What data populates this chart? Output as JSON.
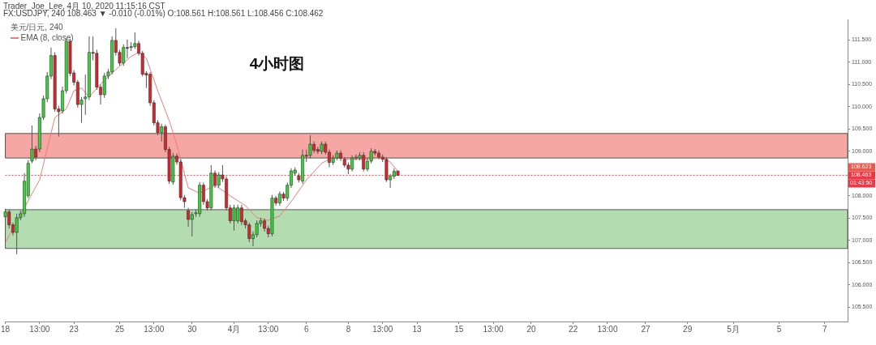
{
  "chart_data": {
    "type": "candlestick",
    "title": "4小时图",
    "subtitle": "FX:USDJPY, 240 108.463 ▼ -0.010 (-0.01%) O:108.561 H:108.561 L:108.456 C:108.462",
    "categories": [
      "18",
      null,
      null,
      null,
      null,
      null,
      null,
      null,
      null,
      "13:00",
      null,
      null,
      null,
      null,
      null,
      null,
      null,
      null,
      "23",
      null,
      null,
      null,
      null,
      null,
      null,
      null,
      null,
      null,
      null,
      null,
      "25",
      null,
      null,
      null,
      null,
      null,
      null,
      null,
      null,
      "13:00",
      null,
      null,
      null,
      null,
      null,
      null,
      null,
      null,
      null,
      "30",
      null,
      null,
      null,
      null,
      null,
      null,
      null,
      null,
      null,
      null,
      "4月",
      null,
      null,
      null,
      null,
      null,
      null,
      null,
      null,
      "13:00",
      null,
      null,
      null,
      null,
      null,
      null,
      null,
      null,
      null,
      "6",
      null,
      null,
      null,
      null,
      null,
      null,
      null,
      null,
      null,
      null,
      "8",
      null,
      null,
      null,
      null,
      null,
      null,
      null,
      null,
      "13:00",
      null,
      null,
      null,
      null,
      null,
      null,
      null,
      null,
      "13",
      null,
      null,
      null,
      null,
      null,
      null,
      null,
      null,
      null,
      null,
      "15",
      null,
      null,
      null,
      null,
      null,
      null,
      null,
      null,
      "13:00",
      null,
      null,
      null,
      null,
      null,
      null,
      null,
      null,
      null,
      "20",
      null,
      null,
      null,
      null,
      null,
      null,
      null,
      null,
      null,
      null,
      "22",
      null,
      null,
      null,
      null,
      null,
      null,
      null,
      null,
      "13:00",
      null,
      null,
      null,
      null,
      null,
      null,
      null,
      null,
      null,
      "27",
      null,
      null,
      null,
      null,
      null,
      null,
      null,
      null,
      null,
      null,
      "29",
      null,
      null,
      null,
      null,
      null,
      null,
      null,
      null,
      null,
      null,
      null,
      "5月",
      null,
      null,
      null,
      null,
      null,
      null,
      null,
      null,
      null,
      null,
      null,
      "5",
      null,
      null,
      null,
      null,
      null,
      null,
      null,
      null,
      null,
      null,
      null,
      "7",
      null,
      null,
      null,
      null,
      null,
      null
    ],
    "ohlc": [
      [
        107.53,
        107.71,
        107.45,
        107.64
      ],
      [
        107.64,
        107.69,
        107.27,
        107.35
      ],
      [
        107.35,
        107.4,
        107.11,
        107.18
      ],
      [
        107.18,
        107.6,
        106.69,
        107.51
      ],
      [
        107.51,
        107.67,
        107.45,
        107.6
      ],
      [
        107.6,
        108.51,
        107.53,
        108.33
      ],
      [
        108.0,
        108.8,
        107.95,
        108.73
      ],
      [
        108.78,
        109.58,
        108.73,
        109.05
      ],
      [
        109.05,
        109.12,
        108.8,
        108.87
      ],
      [
        109.05,
        109.85,
        108.98,
        109.76
      ],
      [
        109.76,
        110.25,
        109.7,
        110.18
      ],
      [
        110.18,
        110.78,
        110.1,
        110.69
      ],
      [
        110.69,
        111.33,
        110.62,
        111.15
      ],
      [
        111.15,
        111.22,
        109.89,
        109.95
      ],
      [
        109.95,
        110.02,
        109.33,
        109.89
      ],
      [
        109.91,
        110.45,
        109.85,
        110.36
      ],
      [
        110.36,
        111.53,
        110.3,
        111.47
      ],
      [
        111.47,
        111.52,
        110.69,
        110.75
      ],
      [
        110.76,
        110.82,
        110.48,
        110.55
      ],
      [
        110.55,
        110.6,
        109.98,
        110.05
      ],
      [
        110.05,
        110.22,
        109.64,
        110.15
      ],
      [
        110.18,
        110.72,
        109.82,
        110.22
      ],
      [
        110.22,
        111.58,
        110.15,
        111.22
      ],
      [
        111.22,
        111.58,
        111.04,
        111.2
      ],
      [
        111.2,
        111.28,
        110.38,
        110.44
      ],
      [
        110.44,
        110.5,
        110.05,
        110.27
      ],
      [
        110.27,
        110.76,
        110.2,
        110.69
      ],
      [
        110.69,
        110.85,
        110.62,
        110.78
      ],
      [
        110.78,
        111.58,
        110.72,
        111.49
      ],
      [
        111.49,
        111.76,
        111.15,
        111.22
      ],
      [
        111.22,
        111.28,
        110.92,
        110.98
      ],
      [
        110.98,
        111.4,
        110.92,
        111.33
      ],
      [
        111.33,
        111.51,
        111.09,
        111.31
      ],
      [
        111.33,
        111.45,
        111.25,
        111.35
      ],
      [
        111.35,
        111.67,
        111.3,
        111.42
      ],
      [
        111.42,
        111.48,
        111.15,
        111.2
      ],
      [
        111.2,
        111.25,
        110.68,
        110.73
      ],
      [
        110.75,
        110.8,
        110.42,
        110.71
      ],
      [
        110.73,
        110.78,
        110.02,
        110.09
      ],
      [
        110.09,
        110.15,
        109.58,
        109.64
      ],
      [
        109.64,
        109.7,
        109.36,
        109.42
      ],
      [
        109.42,
        109.62,
        109.22,
        109.55
      ],
      [
        109.55,
        109.6,
        108.98,
        109.04
      ],
      [
        109.04,
        109.1,
        108.27,
        108.33
      ],
      [
        108.31,
        108.96,
        108.25,
        108.89
      ],
      [
        108.89,
        108.95,
        108.7,
        108.76
      ],
      [
        108.76,
        108.82,
        107.9,
        107.96
      ],
      [
        107.96,
        108.02,
        107.73,
        107.87
      ],
      [
        107.67,
        107.73,
        107.31,
        107.47
      ],
      [
        107.47,
        107.64,
        107.09,
        107.58
      ],
      [
        107.6,
        107.69,
        107.53,
        107.62
      ],
      [
        107.6,
        108.31,
        107.53,
        108.24
      ],
      [
        108.24,
        108.3,
        107.8,
        107.87
      ],
      [
        107.87,
        107.93,
        107.67,
        107.73
      ],
      [
        107.73,
        108.69,
        107.67,
        108.51
      ],
      [
        108.51,
        108.57,
        108.18,
        108.24
      ],
      [
        108.24,
        108.53,
        108.18,
        108.47
      ],
      [
        108.47,
        108.69,
        108.31,
        108.38
      ],
      [
        108.38,
        108.44,
        107.67,
        107.73
      ],
      [
        107.73,
        107.8,
        107.38,
        107.44
      ],
      [
        107.44,
        107.8,
        107.22,
        107.73
      ],
      [
        107.44,
        107.8,
        107.38,
        107.73
      ],
      [
        107.73,
        107.8,
        107.35,
        107.42
      ],
      [
        107.44,
        107.49,
        107.27,
        107.35
      ],
      [
        107.35,
        107.4,
        106.96,
        107.04
      ],
      [
        107.04,
        107.2,
        106.87,
        107.13
      ],
      [
        107.13,
        107.45,
        107.07,
        107.38
      ],
      [
        107.38,
        107.51,
        107.31,
        107.44
      ],
      [
        107.44,
        107.49,
        107.2,
        107.27
      ],
      [
        107.27,
        107.33,
        107.07,
        107.15
      ],
      [
        107.15,
        108.02,
        107.09,
        107.95
      ],
      [
        107.95,
        108.0,
        107.78,
        107.84
      ],
      [
        107.84,
        108.1,
        107.78,
        108.04
      ],
      [
        108.04,
        108.09,
        107.89,
        107.95
      ],
      [
        107.95,
        108.3,
        107.89,
        108.24
      ],
      [
        108.24,
        108.62,
        108.18,
        108.56
      ],
      [
        108.51,
        108.64,
        108.45,
        108.58
      ],
      [
        108.45,
        108.51,
        108.3,
        108.36
      ],
      [
        108.33,
        109.04,
        108.27,
        108.91
      ],
      [
        108.91,
        109.04,
        108.76,
        108.89
      ],
      [
        108.91,
        109.36,
        108.85,
        109.16
      ],
      [
        109.16,
        109.22,
        108.96,
        109.02
      ],
      [
        109.04,
        109.1,
        108.94,
        109.0
      ],
      [
        109.0,
        109.22,
        108.94,
        109.16
      ],
      [
        109.16,
        109.22,
        108.93,
        108.98
      ],
      [
        108.98,
        109.04,
        108.64,
        108.75
      ],
      [
        108.75,
        108.91,
        108.69,
        108.85
      ],
      [
        108.85,
        109.02,
        108.8,
        108.96
      ],
      [
        108.96,
        109.02,
        108.78,
        108.84
      ],
      [
        108.82,
        108.87,
        108.64,
        108.69
      ],
      [
        108.69,
        108.75,
        108.49,
        108.6
      ],
      [
        108.6,
        108.91,
        108.55,
        108.85
      ],
      [
        108.85,
        108.93,
        108.8,
        108.87
      ],
      [
        108.85,
        108.98,
        108.8,
        108.91
      ],
      [
        108.91,
        108.98,
        108.55,
        108.6
      ],
      [
        108.6,
        108.84,
        108.55,
        108.78
      ],
      [
        108.78,
        109.07,
        108.73,
        109.0
      ],
      [
        109.0,
        109.05,
        108.91,
        108.96
      ],
      [
        108.96,
        109.02,
        108.82,
        108.87
      ],
      [
        108.87,
        108.93,
        108.76,
        108.82
      ],
      [
        108.82,
        108.87,
        108.31,
        108.36
      ],
      [
        108.36,
        108.49,
        108.18,
        108.44
      ],
      [
        108.44,
        108.62,
        108.38,
        108.55
      ],
      [
        108.56,
        108.56,
        108.46,
        108.46
      ],
      null,
      null,
      null,
      null,
      null,
      null,
      null,
      null,
      null,
      null,
      null,
      null,
      null,
      null,
      null,
      null,
      null,
      null,
      null,
      null,
      null,
      null,
      null,
      null,
      null,
      null,
      null,
      null,
      null,
      null,
      null,
      null,
      null,
      null,
      null,
      null,
      null,
      null,
      null,
      null,
      null,
      null,
      null,
      null,
      null,
      null,
      null,
      null,
      null,
      null,
      null,
      null,
      null,
      null,
      null,
      null,
      null,
      null,
      null,
      null,
      null,
      null,
      null,
      null,
      null,
      null,
      null,
      null,
      null,
      null,
      null,
      null,
      null,
      null,
      null,
      null,
      null,
      null,
      null,
      null,
      null,
      null,
      null,
      null,
      null,
      null,
      null,
      null,
      null,
      null,
      null,
      null,
      null,
      null,
      null,
      null,
      null,
      null,
      null,
      null,
      null,
      null,
      null,
      null,
      null,
      null,
      null,
      null,
      null,
      null,
      null,
      null,
      null,
      null,
      null,
      null,
      null,
      null
    ],
    "series": [
      {
        "type": "line",
        "name": "EMA (8, close)",
        "color": "#ee7b74",
        "values": [
          106.95,
          null,
          null,
          null,
          null,
          null,
          null,
          null,
          null,
          108.36,
          null,
          null,
          null,
          109.76,
          null,
          null,
          109.95,
          null,
          110.36,
          null,
          110.42,
          null,
          110.22,
          null,
          null,
          110.51,
          null,
          null,
          110.76,
          null,
          110.91,
          null,
          null,
          111.13,
          null,
          111.22,
          null,
          111.09,
          null,
          null,
          110.36,
          null,
          null,
          109.69,
          null,
          109.15,
          null,
          null,
          108.18,
          null,
          null,
          108.06,
          null,
          null,
          null,
          108.24,
          null,
          null,
          null,
          108.0,
          null,
          null,
          null,
          107.78,
          null,
          null,
          107.51,
          null,
          null,
          107.45,
          null,
          null,
          107.55,
          null,
          null,
          107.87,
          null,
          null,
          null,
          108.36,
          null,
          null,
          null,
          108.73,
          null,
          null,
          108.87,
          null,
          null,
          null,
          108.82,
          null,
          null,
          null,
          108.82,
          null,
          null,
          null,
          null,
          108.85,
          null,
          108.76,
          null,
          108.55,
          null,
          null,
          null,
          null,
          null,
          null,
          null,
          null,
          null,
          null,
          null,
          null,
          null,
          null,
          null,
          null,
          null,
          null,
          null,
          null,
          null,
          null,
          null,
          null,
          null,
          null,
          null,
          null,
          null,
          null,
          null,
          null,
          null,
          null,
          null,
          null,
          null,
          null,
          null,
          null,
          null,
          null,
          null,
          null,
          null,
          null,
          null,
          null,
          null,
          null,
          null,
          null,
          null,
          null,
          null,
          null,
          null,
          null,
          null,
          null,
          null,
          null,
          null,
          null,
          null,
          null,
          null,
          null,
          null,
          null,
          null,
          null,
          null,
          null,
          null,
          null,
          null,
          null,
          null,
          null,
          null,
          null,
          null,
          null,
          null,
          null,
          null,
          null,
          null,
          null,
          null,
          null,
          null,
          null,
          null,
          null,
          null,
          null,
          null,
          null,
          null,
          null,
          null,
          null,
          null,
          null,
          null,
          null,
          null,
          null,
          null,
          null,
          null,
          null,
          null,
          null,
          null,
          null
        ]
      }
    ],
    "legend_title": "美元/日元, 240",
    "legend": "top left",
    "ylim": [
      105.18,
      111.96
    ],
    "yticks": [
      {
        "value": 105.5,
        "label": "105.500"
      },
      {
        "value": 106,
        "label": "106.000"
      },
      {
        "value": 106.5,
        "label": "106.500"
      },
      {
        "value": 107,
        "label": "107.000"
      },
      {
        "value": 107.5,
        "label": "107.500"
      },
      {
        "value": 108,
        "label": "108.000"
      },
      {
        "value": 109,
        "label": "109.000"
      },
      {
        "value": 109.5,
        "label": "109.500"
      },
      {
        "value": 110,
        "label": "110.000"
      },
      {
        "value": 110.5,
        "label": "110.500"
      },
      {
        "value": 111,
        "label": "111.000"
      },
      {
        "value": 111.5,
        "label": "111.500"
      }
    ],
    "ref_lines": [
      {
        "axis": "y",
        "value": 108.463,
        "label": "108.463",
        "color": "#f23645",
        "line_style": "dotted"
      }
    ],
    "bands": [
      {
        "axis": "y",
        "from": 108.85,
        "to": 109.4,
        "color": "#f6a6a3"
      },
      {
        "axis": "y",
        "from": 106.82,
        "to": 107.69,
        "color": "#b3ddb1"
      }
    ],
    "annotations": [
      "Trader_Joe_Lee, 4月 10, 2020 11:15:16 CST",
      {
        "text": "108.623",
        "y": 108.623
      },
      "01:43:50"
    ],
    "grid": false
  }
}
